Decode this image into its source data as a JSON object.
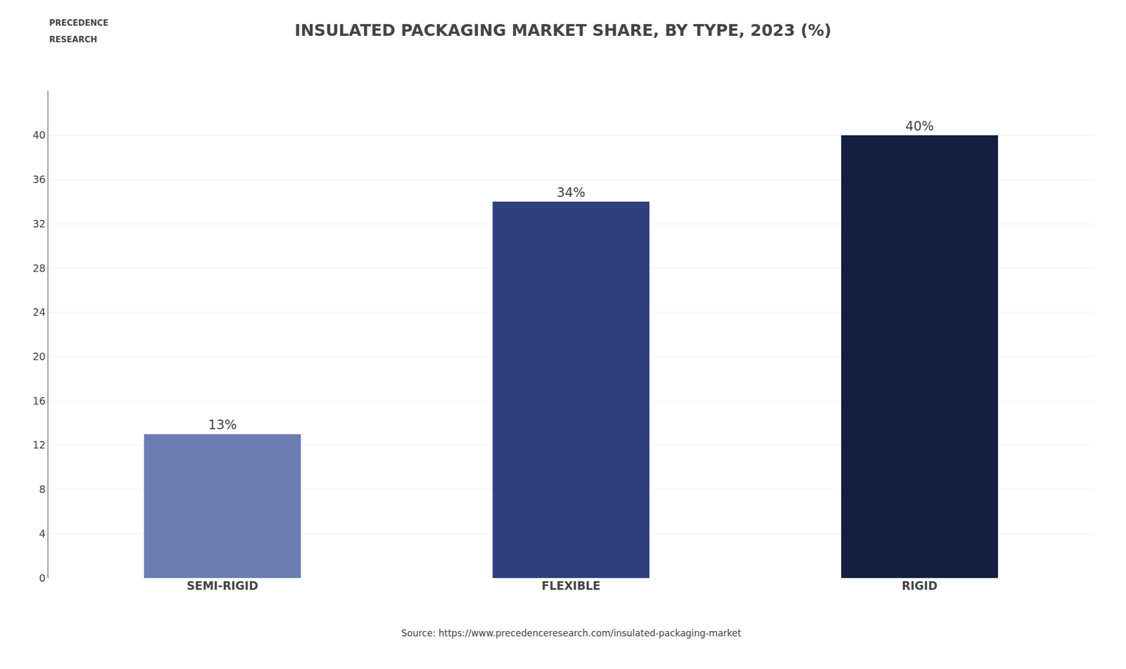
{
  "chart_data": {
    "type": "bar",
    "title": "INSULATED PACKAGING MARKET SHARE, BY TYPE, 2023 (%)",
    "categories": [
      "SEMI-RIGID",
      "FLEXIBLE",
      "RIGID"
    ],
    "values": [
      13,
      34,
      40
    ],
    "value_labels": [
      "13%",
      "34%",
      "40%"
    ],
    "data_labels": true,
    "colors": [
      "#6b7db3",
      "#2d3f7c",
      "#131e40"
    ],
    "ylim": [
      0,
      44
    ],
    "yticks": [
      0,
      4,
      8,
      12,
      16,
      20,
      24,
      28,
      32,
      36,
      40
    ],
    "grid": true,
    "annotations": [
      "Source: https://www.precedenceresearch.com/insulated-packaging-market",
      "PRECEDENCE",
      "RESEARCH"
    ]
  }
}
